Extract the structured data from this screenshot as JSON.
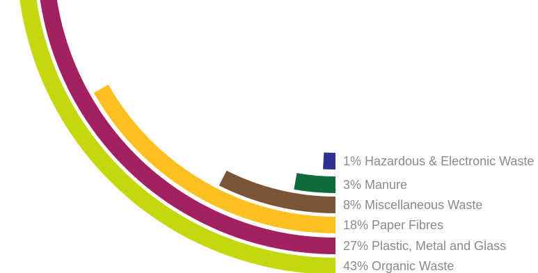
{
  "chart_data": {
    "type": "radial-bar",
    "title": "",
    "series": [
      {
        "name": "Hazardous & Electronic Waste",
        "value": 1,
        "label": "1% Hazardous & Electronic Waste",
        "color": "#2e3192"
      },
      {
        "name": "Manure",
        "value": 3,
        "label": "3% Manure",
        "color": "#0e6b3a"
      },
      {
        "name": "Miscellaneous Waste",
        "value": 8,
        "label": "8% Miscellaneous Waste",
        "color": "#7a5538"
      },
      {
        "name": "Paper Fibres",
        "value": 18,
        "label": "18% Paper Fibres",
        "color": "#fec020"
      },
      {
        "name": "Plastic, Metal and Glass",
        "value": 27,
        "label": "27% Plastic, Metal and Glass",
        "color": "#a3215f"
      },
      {
        "name": "Organic Waste",
        "value": 43,
        "label": "43% Organic Waste",
        "color": "#c5d80f"
      }
    ],
    "unit": "%",
    "legend": "right"
  }
}
